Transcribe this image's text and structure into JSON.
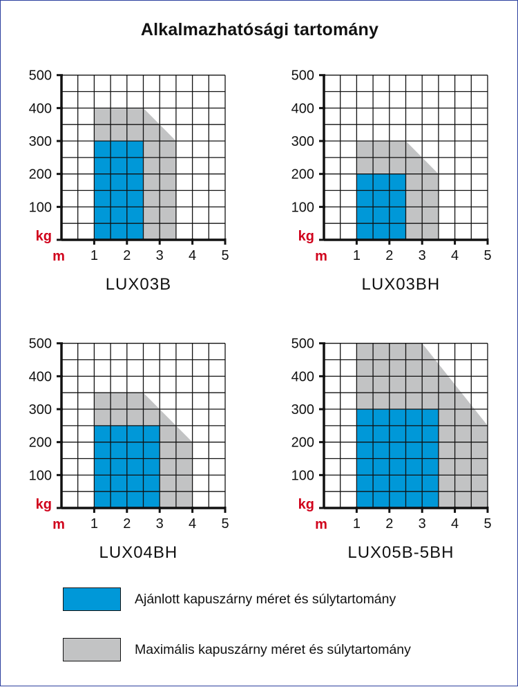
{
  "title": "Alkalmazhatósági tartomány",
  "colors": {
    "recommended": "#0098d8",
    "maximum": "#c2c3c4",
    "grid": "#111111",
    "unit_label": "#d0021b"
  },
  "legend": {
    "recommended_label": "Ajánlott kapuszárny méret és súlytartomány",
    "maximum_label": "Maximális kapuszárny méret és súlytartomány"
  },
  "chart_data": [
    {
      "type": "area",
      "title": "LUX03B",
      "xlabel": "m",
      "ylabel": "kg",
      "xlim": [
        0,
        5
      ],
      "ylim": [
        0,
        500
      ],
      "x_ticks": [
        "1",
        "2",
        "3",
        "4",
        "5"
      ],
      "y_ticks": [
        "100",
        "200",
        "300",
        "400",
        "500"
      ],
      "grid": true,
      "series": [
        {
          "name": "Maximális kapuszárny méret és súlytartomány",
          "x": [
            1,
            2.5,
            3.5,
            3.5,
            1
          ],
          "y": [
            400,
            400,
            300,
            0,
            0
          ]
        },
        {
          "name": "Ajánlott kapuszárny méret és súlytartomány",
          "x": [
            1,
            2.5,
            2.5,
            1
          ],
          "y": [
            300,
            300,
            0,
            0
          ]
        }
      ]
    },
    {
      "type": "area",
      "title": "LUX03BH",
      "xlabel": "m",
      "ylabel": "kg",
      "xlim": [
        0,
        5
      ],
      "ylim": [
        0,
        500
      ],
      "x_ticks": [
        "1",
        "2",
        "3",
        "4",
        "5"
      ],
      "y_ticks": [
        "100",
        "200",
        "300",
        "400",
        "500"
      ],
      "grid": true,
      "series": [
        {
          "name": "Maximális kapuszárny méret és súlytartomány",
          "x": [
            1,
            2.5,
            3.5,
            3.5,
            1
          ],
          "y": [
            300,
            300,
            200,
            0,
            0
          ]
        },
        {
          "name": "Ajánlott kapuszárny méret és súlytartomány",
          "x": [
            1,
            2.5,
            2.5,
            1
          ],
          "y": [
            200,
            200,
            0,
            0
          ]
        }
      ]
    },
    {
      "type": "area",
      "title": "LUX04BH",
      "xlabel": "m",
      "ylabel": "kg",
      "xlim": [
        0,
        5
      ],
      "ylim": [
        0,
        500
      ],
      "x_ticks": [
        "1",
        "2",
        "3",
        "4",
        "5"
      ],
      "y_ticks": [
        "100",
        "200",
        "300",
        "400",
        "500"
      ],
      "grid": true,
      "series": [
        {
          "name": "Maximális kapuszárny méret és súlytartomány",
          "x": [
            1,
            2.5,
            4,
            4,
            1
          ],
          "y": [
            350,
            350,
            200,
            0,
            0
          ]
        },
        {
          "name": "Ajánlott kapuszárny méret és súlytartomány",
          "x": [
            1,
            3,
            3,
            1
          ],
          "y": [
            250,
            250,
            0,
            0
          ]
        }
      ]
    },
    {
      "type": "area",
      "title": "LUX05B-5BH",
      "xlabel": "m",
      "ylabel": "kg",
      "xlim": [
        0,
        5
      ],
      "ylim": [
        0,
        500
      ],
      "x_ticks": [
        "1",
        "2",
        "3",
        "4",
        "5"
      ],
      "y_ticks": [
        "100",
        "200",
        "300",
        "400",
        "500"
      ],
      "grid": true,
      "series": [
        {
          "name": "Maximális kapuszárny méret és súlytartomány",
          "x": [
            1,
            3,
            5,
            5,
            1
          ],
          "y": [
            500,
            500,
            250,
            0,
            0
          ]
        },
        {
          "name": "Ajánlott kapuszárny méret és súlytartomány",
          "x": [
            1,
            3.5,
            3.5,
            1
          ],
          "y": [
            300,
            300,
            0,
            0
          ]
        }
      ]
    }
  ]
}
